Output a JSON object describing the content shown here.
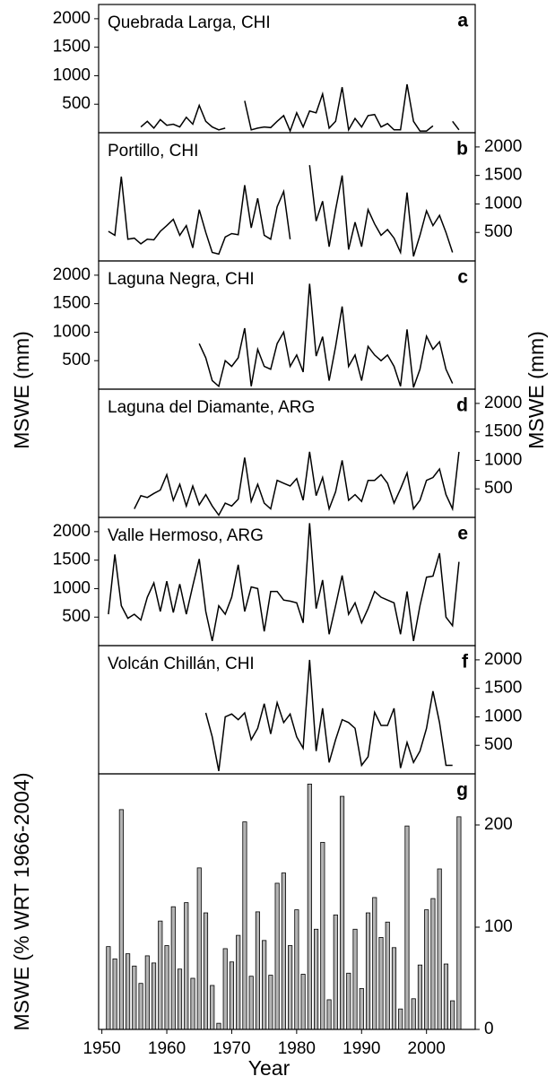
{
  "chart_data": [
    {
      "type": "line",
      "title": "Quebrada Larga, CHI",
      "panel_label": "a",
      "y_axis": "left",
      "color": "#000000",
      "x": [
        1956,
        1957,
        1958,
        1959,
        1960,
        1961,
        1962,
        1963,
        1964,
        1965,
        1966,
        1967,
        1968,
        1969,
        1970,
        1971,
        1972,
        1973,
        1974,
        1975,
        1976,
        1977,
        1978,
        1979,
        1980,
        1981,
        1982,
        1983,
        1984,
        1985,
        1986,
        1987,
        1988,
        1989,
        1990,
        1991,
        1992,
        1993,
        1994,
        1995,
        1996,
        1997,
        1998,
        1999,
        2000,
        2001,
        2002,
        2003,
        2004,
        2005
      ],
      "values": [
        100,
        200,
        80,
        230,
        130,
        150,
        100,
        270,
        150,
        480,
        200,
        100,
        50,
        80,
        null,
        null,
        560,
        50,
        80,
        100,
        90,
        200,
        300,
        30,
        350,
        100,
        380,
        350,
        680,
        80,
        200,
        800,
        50,
        250,
        100,
        300,
        320,
        100,
        160,
        50,
        50,
        850,
        200,
        30,
        30,
        120,
        null,
        null,
        200,
        50
      ],
      "xlim": [
        1949.5,
        2007.5
      ],
      "ylim": [
        0,
        2250
      ],
      "yticks": [
        500,
        1000,
        1500,
        2000
      ]
    },
    {
      "type": "line",
      "title": "Portillo, CHI",
      "panel_label": "b",
      "y_axis": "right",
      "color": "#000000",
      "x": [
        1951,
        1952,
        1953,
        1954,
        1955,
        1956,
        1957,
        1958,
        1959,
        1960,
        1961,
        1962,
        1963,
        1964,
        1965,
        1966,
        1967,
        1968,
        1969,
        1970,
        1971,
        1972,
        1973,
        1974,
        1975,
        1976,
        1977,
        1978,
        1979,
        1980,
        1981,
        1982,
        1983,
        1984,
        1985,
        1986,
        1987,
        1988,
        1989,
        1990,
        1991,
        1992,
        1993,
        1994,
        1995,
        1996,
        1997,
        1998,
        1999,
        2000,
        2001,
        2002,
        2003,
        2004
      ],
      "values": [
        520,
        450,
        1480,
        380,
        400,
        300,
        380,
        370,
        520,
        620,
        730,
        450,
        620,
        230,
        900,
        500,
        150,
        120,
        420,
        480,
        460,
        1330,
        580,
        1100,
        450,
        380,
        950,
        1220,
        380,
        null,
        null,
        1680,
        700,
        1050,
        250,
        900,
        1500,
        200,
        680,
        250,
        900,
        650,
        450,
        550,
        400,
        150,
        1200,
        80,
        450,
        880,
        620,
        800,
        500,
        150
      ],
      "xlim": [
        1949.5,
        2007.5
      ],
      "ylim": [
        0,
        2250
      ],
      "yticks": [
        500,
        1000,
        1500,
        2000
      ]
    },
    {
      "type": "line",
      "title": "Laguna Negra, CHI",
      "panel_label": "c",
      "y_axis": "left",
      "color": "#000000",
      "ylabel": "MSWE (mm)",
      "x": [
        1965,
        1966,
        1967,
        1968,
        1969,
        1970,
        1971,
        1972,
        1973,
        1974,
        1975,
        1976,
        1977,
        1978,
        1979,
        1980,
        1981,
        1982,
        1983,
        1984,
        1985,
        1986,
        1987,
        1988,
        1989,
        1990,
        1991,
        1992,
        1993,
        1994,
        1995,
        1996,
        1997,
        1998,
        1999,
        2000,
        2001,
        2002,
        2003,
        2004
      ],
      "values": [
        800,
        550,
        150,
        50,
        500,
        400,
        550,
        1070,
        50,
        700,
        400,
        350,
        800,
        1000,
        400,
        600,
        300,
        1850,
        580,
        920,
        150,
        750,
        1450,
        400,
        600,
        150,
        750,
        600,
        500,
        600,
        400,
        50,
        1050,
        30,
        350,
        930,
        700,
        830,
        350,
        100
      ],
      "xlim": [
        1949.5,
        2007.5
      ],
      "ylim": [
        0,
        2250
      ],
      "yticks": [
        500,
        1000,
        1500,
        2000
      ]
    },
    {
      "type": "line",
      "title": "Laguna del Diamante, ARG",
      "panel_label": "d",
      "y_axis": "right",
      "color": "#000000",
      "ylabel": "MSWE (mm)",
      "x": [
        1955,
        1956,
        1957,
        1958,
        1959,
        1960,
        1961,
        1962,
        1963,
        1964,
        1965,
        1966,
        1967,
        1968,
        1969,
        1970,
        1971,
        1972,
        1973,
        1974,
        1975,
        1976,
        1977,
        1978,
        1979,
        1980,
        1981,
        1982,
        1983,
        1984,
        1985,
        1986,
        1987,
        1988,
        1989,
        1990,
        1991,
        1992,
        1993,
        1994,
        1995,
        1996,
        1997,
        1998,
        1999,
        2000,
        2001,
        2002,
        2003,
        2004,
        2005
      ],
      "values": [
        150,
        380,
        350,
        420,
        480,
        750,
        300,
        580,
        200,
        550,
        220,
        400,
        200,
        40,
        250,
        200,
        320,
        1050,
        280,
        580,
        250,
        150,
        650,
        600,
        550,
        680,
        300,
        1150,
        380,
        700,
        150,
        450,
        1000,
        300,
        400,
        280,
        650,
        650,
        750,
        600,
        250,
        500,
        780,
        150,
        300,
        650,
        700,
        850,
        400,
        150,
        1150
      ],
      "xlim": [
        1949.5,
        2007.5
      ],
      "ylim": [
        0,
        2250
      ],
      "yticks": [
        500,
        1000,
        1500,
        2000
      ]
    },
    {
      "type": "line",
      "title": "Valle Hermoso, ARG",
      "panel_label": "e",
      "y_axis": "left",
      "color": "#000000",
      "x": [
        1951,
        1952,
        1953,
        1954,
        1955,
        1956,
        1957,
        1958,
        1959,
        1960,
        1961,
        1962,
        1963,
        1964,
        1965,
        1966,
        1967,
        1968,
        1969,
        1970,
        1971,
        1972,
        1973,
        1974,
        1975,
        1976,
        1977,
        1978,
        1979,
        1980,
        1981,
        1982,
        1983,
        1984,
        1985,
        1986,
        1987,
        1988,
        1989,
        1990,
        1991,
        1992,
        1993,
        1994,
        1995,
        1996,
        1997,
        1998,
        1999,
        2000,
        2001,
        2002,
        2003,
        2004,
        2005
      ],
      "values": [
        550,
        1600,
        700,
        480,
        550,
        450,
        850,
        1100,
        600,
        1130,
        580,
        1080,
        550,
        1050,
        1520,
        600,
        80,
        700,
        550,
        850,
        1420,
        600,
        1030,
        1000,
        250,
        950,
        950,
        800,
        780,
        750,
        400,
        2150,
        650,
        1150,
        200,
        700,
        1230,
        550,
        750,
        400,
        650,
        950,
        850,
        800,
        750,
        200,
        950,
        80,
        700,
        1200,
        1220,
        1620,
        500,
        350,
        1470
      ],
      "xlim": [
        1949.5,
        2007.5
      ],
      "ylim": [
        0,
        2250
      ],
      "yticks": [
        500,
        1000,
        1500,
        2000
      ]
    },
    {
      "type": "line",
      "title": "Volcán Chillán, CHI",
      "panel_label": "f",
      "y_axis": "right",
      "color": "#000000",
      "x": [
        1966,
        1967,
        1968,
        1969,
        1970,
        1971,
        1972,
        1973,
        1974,
        1975,
        1976,
        1977,
        1978,
        1979,
        1980,
        1981,
        1982,
        1983,
        1984,
        1985,
        1986,
        1987,
        1988,
        1989,
        1990,
        1991,
        1992,
        1993,
        1994,
        1995,
        1996,
        1997,
        1998,
        1999,
        2000,
        2001,
        2002,
        2003,
        2004
      ],
      "values": [
        1070,
        650,
        50,
        1000,
        1050,
        950,
        1070,
        600,
        800,
        1230,
        700,
        1250,
        900,
        1050,
        650,
        450,
        2000,
        400,
        1150,
        200,
        600,
        950,
        900,
        800,
        150,
        300,
        1080,
        850,
        850,
        1150,
        100,
        550,
        200,
        400,
        800,
        1450,
        900,
        150,
        150
      ],
      "xlim": [
        1949.5,
        2007.5
      ],
      "ylim": [
        0,
        2250
      ],
      "yticks": [
        500,
        1000,
        1500,
        2000
      ]
    },
    {
      "type": "bar",
      "panel_label": "g",
      "y_axis": "right",
      "color": "#b4b4b4",
      "ylabel": "MSWE (% WRT 1966-2004)",
      "xlabel": "Year",
      "x": [
        1951,
        1952,
        1953,
        1954,
        1955,
        1956,
        1957,
        1958,
        1959,
        1960,
        1961,
        1962,
        1963,
        1964,
        1965,
        1966,
        1967,
        1968,
        1969,
        1970,
        1971,
        1972,
        1973,
        1974,
        1975,
        1976,
        1977,
        1978,
        1979,
        1980,
        1981,
        1982,
        1983,
        1984,
        1985,
        1986,
        1987,
        1988,
        1989,
        1990,
        1991,
        1992,
        1993,
        1994,
        1995,
        1996,
        1997,
        1998,
        1999,
        2000,
        2001,
        2002,
        2003,
        2004,
        2005
      ],
      "values": [
        81,
        69,
        215,
        74,
        62,
        45,
        72,
        65,
        106,
        82,
        120,
        59,
        124,
        50,
        158,
        114,
        43,
        6,
        79,
        66,
        92,
        203,
        52,
        115,
        87,
        53,
        143,
        153,
        82,
        117,
        54,
        240,
        98,
        183,
        29,
        112,
        228,
        55,
        98,
        40,
        114,
        129,
        90,
        105,
        80,
        20,
        199,
        30,
        63,
        117,
        128,
        157,
        64,
        28,
        208
      ],
      "xlim": [
        1949.5,
        2007.5
      ],
      "ylim": [
        0,
        250
      ],
      "yticks": [
        0,
        100,
        200
      ],
      "xticks": [
        1950,
        1960,
        1970,
        1980,
        1990,
        2000
      ]
    }
  ]
}
